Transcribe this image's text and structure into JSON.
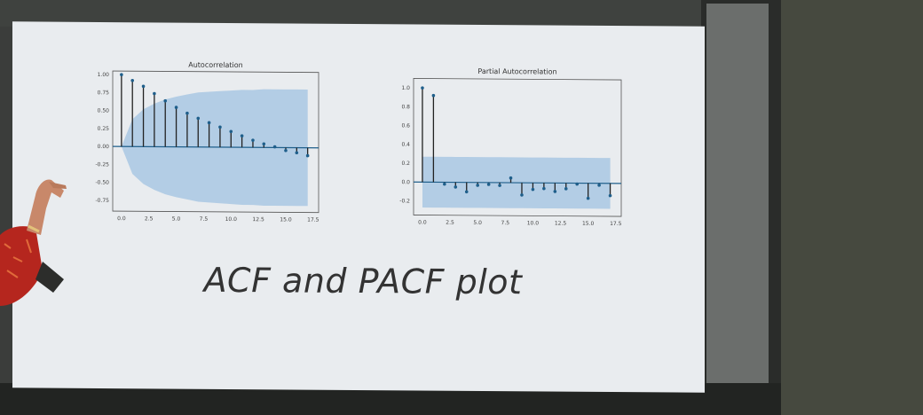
{
  "slide": {
    "caption": "ACF and PACF plot"
  },
  "colors": {
    "stem": "#1f5f8b",
    "confidence_band": "#a9c8e3",
    "slide_bg": "#e9ecef"
  },
  "chart_data": [
    {
      "type": "stem",
      "title": "Autocorrelation",
      "xlabel": "",
      "ylabel": "",
      "xlim": [
        -0.8,
        18
      ],
      "ylim": [
        -0.9,
        1.05
      ],
      "x_ticks": [
        "0.0",
        "2.5",
        "5.0",
        "7.5",
        "10.0",
        "12.5",
        "15.0",
        "17.5"
      ],
      "y_ticks": [
        "1.00",
        "0.75",
        "0.50",
        "0.25",
        "0.00",
        "-0.25",
        "-0.50",
        "-0.75"
      ],
      "lags": [
        0,
        1,
        2,
        3,
        4,
        5,
        6,
        7,
        8,
        9,
        10,
        11,
        12,
        13,
        14,
        15,
        16,
        17
      ],
      "values": [
        1.0,
        0.92,
        0.84,
        0.74,
        0.64,
        0.55,
        0.47,
        0.4,
        0.34,
        0.28,
        0.22,
        0.16,
        0.1,
        0.05,
        0.01,
        -0.04,
        -0.07,
        -0.11
      ],
      "confidence_upper": [
        0.0,
        0.38,
        0.52,
        0.6,
        0.66,
        0.7,
        0.73,
        0.76,
        0.77,
        0.78,
        0.79,
        0.8,
        0.8,
        0.81,
        0.81,
        0.81,
        0.81,
        0.81
      ],
      "grid": false
    },
    {
      "type": "stem",
      "title": "Partial Autocorrelation",
      "xlabel": "",
      "ylabel": "",
      "xlim": [
        -0.8,
        18
      ],
      "ylim": [
        -0.35,
        1.1
      ],
      "x_ticks": [
        "0.0",
        "2.5",
        "5.0",
        "7.5",
        "10.0",
        "12.5",
        "15.0",
        "17.5"
      ],
      "y_ticks": [
        "1.0",
        "0.8",
        "0.6",
        "0.4",
        "0.2",
        "0.0",
        "-0.2"
      ],
      "lags": [
        0,
        1,
        2,
        3,
        4,
        5,
        6,
        7,
        8,
        9,
        10,
        11,
        12,
        13,
        14,
        15,
        16,
        17
      ],
      "values": [
        1.0,
        0.92,
        -0.02,
        -0.05,
        -0.1,
        -0.03,
        -0.02,
        -0.03,
        0.05,
        -0.13,
        -0.07,
        -0.06,
        -0.09,
        -0.06,
        -0.01,
        -0.16,
        -0.02,
        -0.13
      ],
      "confidence_upper": [
        0.27,
        0.27,
        0.27,
        0.27,
        0.27,
        0.27,
        0.27,
        0.27,
        0.27,
        0.27,
        0.27,
        0.27,
        0.27,
        0.27,
        0.27,
        0.27,
        0.27,
        0.27
      ],
      "grid": false
    }
  ]
}
